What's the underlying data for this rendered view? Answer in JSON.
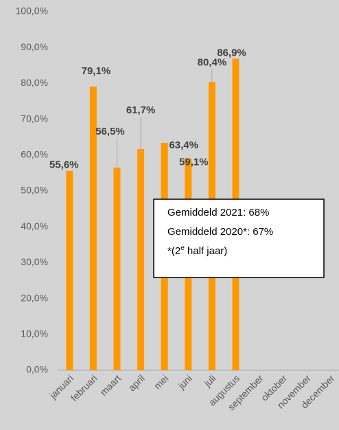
{
  "chart_data": {
    "type": "bar",
    "categories": [
      "januari",
      "februari",
      "maart",
      "april",
      "mei",
      "juni",
      "juli",
      "augustus",
      "september",
      "oktober",
      "november",
      "december"
    ],
    "values": [
      55.6,
      79.1,
      56.5,
      61.7,
      63.4,
      59.1,
      80.4,
      86.9,
      null,
      null,
      null,
      null
    ],
    "value_labels": [
      "55,6%",
      "79,1%",
      "56,5%",
      "61,7%",
      "63,4%",
      "59,1%",
      "80,4%",
      "86,9%",
      null,
      null,
      null,
      null
    ],
    "color": "#ff9900",
    "ylim": [
      0,
      100
    ],
    "yticks": [
      {
        "value": 0,
        "label": "0,0%"
      },
      {
        "value": 10,
        "label": "10,0%"
      },
      {
        "value": 20,
        "label": "20,0%"
      },
      {
        "value": 30,
        "label": "30,0%"
      },
      {
        "value": 40,
        "label": "40,0%"
      },
      {
        "value": 50,
        "label": "50,0%"
      },
      {
        "value": 60,
        "label": "60,0%"
      },
      {
        "value": 70,
        "label": "70,0%"
      },
      {
        "value": 80,
        "label": "80,0%"
      },
      {
        "value": 90,
        "label": "90,0%"
      },
      {
        "value": 100,
        "label": "100,0%"
      }
    ],
    "grid": false,
    "annotations": [
      "Gemiddeld 2021: 68%",
      "Gemiddeld 2020*: 67%",
      {
        "prefix": "*(2",
        "sup": "e",
        "suffix": " half jaar)"
      }
    ]
  }
}
